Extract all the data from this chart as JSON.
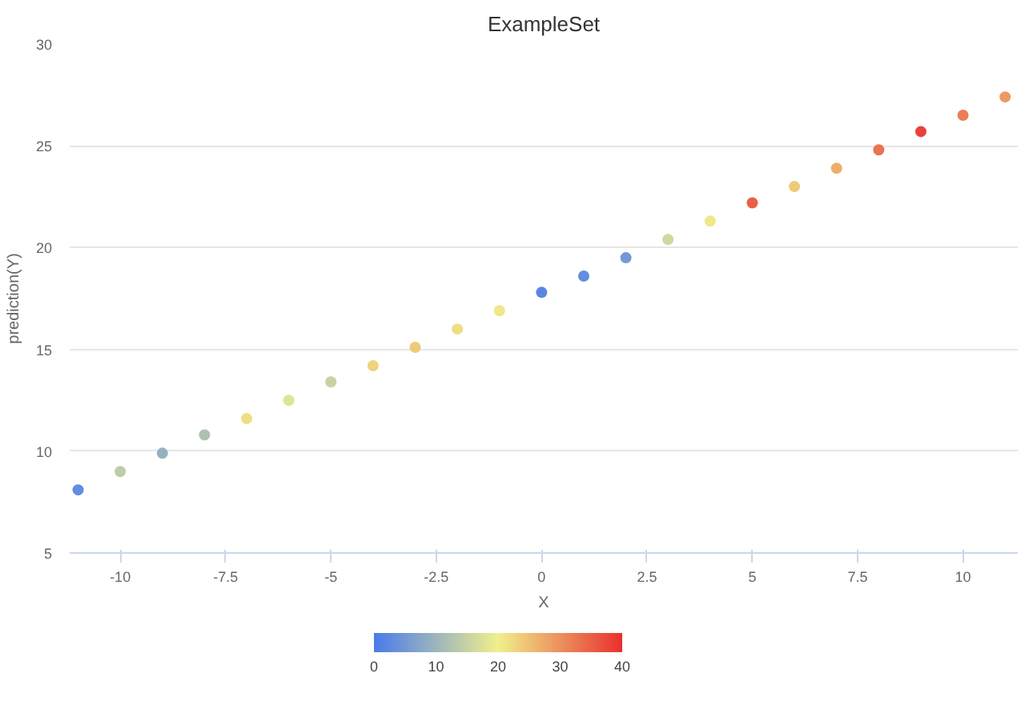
{
  "chart_data": {
    "type": "scatter",
    "title": "ExampleSet",
    "xlabel": "X",
    "ylabel": "prediction(Y)",
    "x": [
      -11,
      -10,
      -9,
      -8,
      -7,
      -6,
      -5,
      -4,
      -3,
      -2,
      -1,
      0,
      1,
      2,
      3,
      4,
      5,
      6,
      7,
      8,
      9,
      10,
      11
    ],
    "values": [
      8.1,
      9.0,
      9.9,
      10.8,
      11.6,
      12.5,
      13.4,
      14.2,
      15.1,
      16.0,
      16.9,
      17.8,
      18.6,
      19.5,
      20.4,
      21.3,
      22.2,
      23.0,
      23.9,
      24.8,
      25.7,
      26.5,
      27.4
    ],
    "cvalues": [
      3,
      14,
      9,
      12,
      22,
      18,
      15,
      23,
      24,
      22,
      21,
      2,
      3,
      5,
      16,
      21,
      35,
      24,
      27,
      33,
      38,
      32,
      29
    ],
    "xlim": [
      -11.2,
      11.3
    ],
    "ylim": [
      5,
      30
    ],
    "xticks": [
      -10,
      -7.5,
      -5,
      -2.5,
      0,
      2.5,
      5,
      7.5,
      10
    ],
    "yticks": [
      5,
      10,
      15,
      20,
      25,
      30
    ],
    "clim": [
      0,
      40
    ],
    "cticks": [
      0,
      10,
      20,
      30,
      40
    ],
    "grid": "y",
    "marker": "circle"
  }
}
